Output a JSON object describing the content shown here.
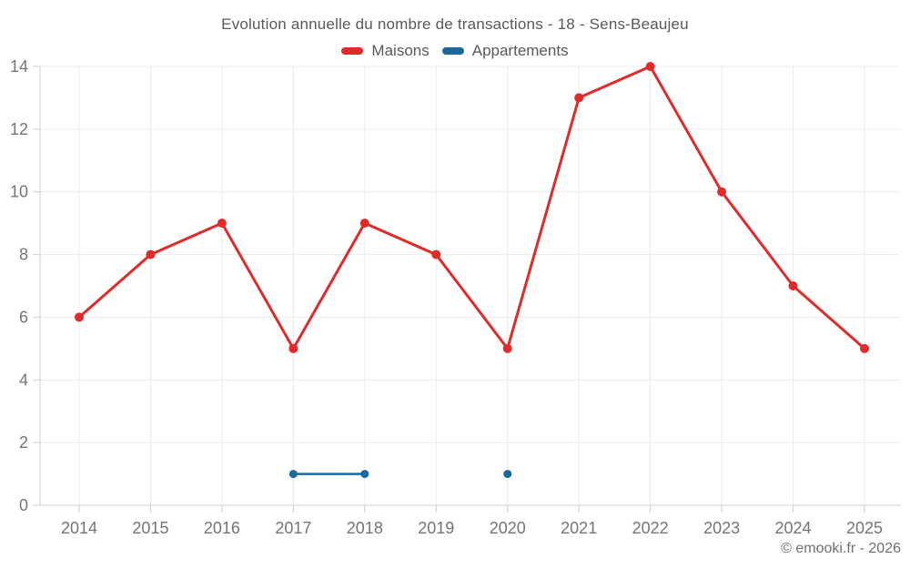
{
  "header": {
    "title": "Evolution annuelle du nombre de transactions - 18 - Sens-Beaujeu"
  },
  "legend": {
    "items": [
      {
        "label": "Maisons",
        "color": "#e02b2b"
      },
      {
        "label": "Appartements",
        "color": "#176aa0"
      }
    ]
  },
  "footer": {
    "copyright": "© emooki.fr - 2026"
  },
  "colors": {
    "grid": "#ececec",
    "axis": "#cfcfcf",
    "tick_label": "#757575",
    "title_text": "#58595b",
    "copyright_text": "#6e6f71"
  },
  "chart_data": {
    "type": "line",
    "title": "Evolution annuelle du nombre de transactions - 18 - Sens-Beaujeu",
    "categories": [
      2014,
      2015,
      2016,
      2017,
      2018,
      2019,
      2020,
      2021,
      2022,
      2023,
      2024,
      2025
    ],
    "series": [
      {
        "name": "Maisons",
        "color": "#e02b2b",
        "line_width": 3,
        "marker_radius": 5,
        "values": [
          6,
          8,
          9,
          5,
          9,
          8,
          5,
          13,
          14,
          10,
          7,
          5
        ]
      },
      {
        "name": "Appartements",
        "color": "#176aa0",
        "line_width": 2.5,
        "marker_radius": 4.5,
        "values": [
          null,
          null,
          null,
          1,
          1,
          null,
          1,
          null,
          null,
          null,
          null,
          null
        ]
      }
    ],
    "xlabel": "",
    "ylabel": "",
    "ylim": [
      0,
      14
    ],
    "yticks": [
      0,
      2,
      4,
      6,
      8,
      10,
      12,
      14
    ],
    "grid": true,
    "legend_position": "top"
  }
}
